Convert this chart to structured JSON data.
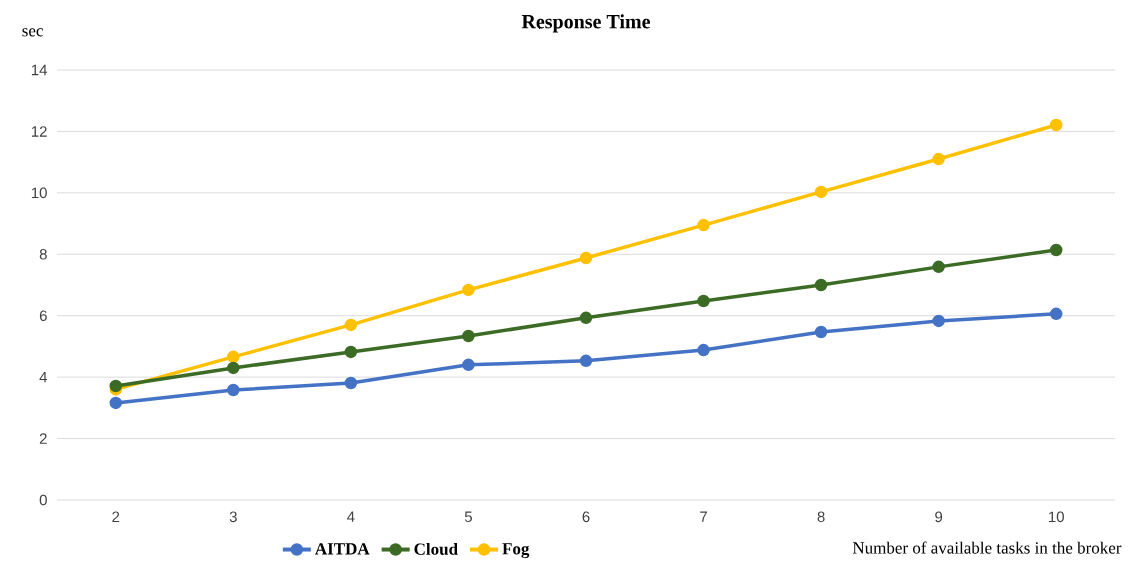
{
  "chart_data": {
    "type": "line",
    "title": "Response Time",
    "ylabel": "sec",
    "xlabel": "Number of available tasks in the broker",
    "categories": [
      "2",
      "3",
      "4",
      "5",
      "6",
      "7",
      "8",
      "9",
      "10"
    ],
    "series": [
      {
        "name": "AITDA",
        "color": "#4472c4",
        "values": [
          3.16,
          3.58,
          3.81,
          4.4,
          4.53,
          4.88,
          5.47,
          5.83,
          6.06
        ]
      },
      {
        "name": "Cloud",
        "color": "#3b6b24",
        "values": [
          3.71,
          4.3,
          4.82,
          5.34,
          5.93,
          6.48,
          7.0,
          7.59,
          8.14
        ]
      },
      {
        "name": "Fog",
        "color": "#ffc000",
        "values": [
          3.6,
          4.66,
          5.7,
          6.84,
          7.88,
          8.95,
          10.03,
          11.1,
          12.21
        ]
      }
    ],
    "ylim": [
      0,
      14
    ],
    "yticks": [
      0,
      2,
      4,
      6,
      8,
      10,
      12,
      14
    ],
    "grid": "y",
    "legend": "bottom",
    "marker": "circle",
    "line_style": "solid"
  }
}
